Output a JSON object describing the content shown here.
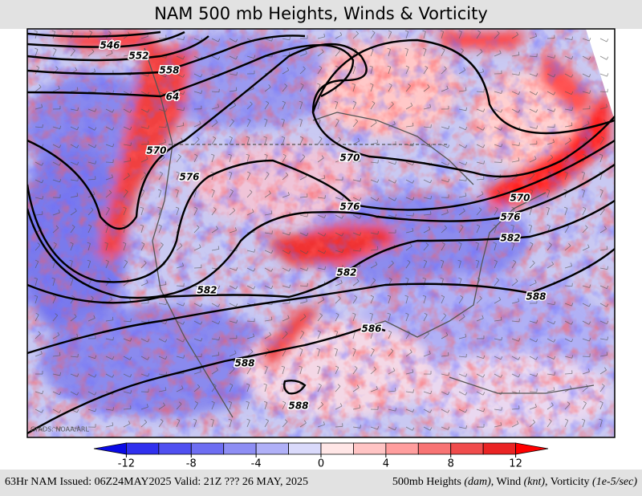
{
  "title": "NAM 500 mb Heights, Winds & Vorticity",
  "map": {
    "watermark": "GrADS: NOAA/ARL",
    "contour_labels": [
      "546",
      "552",
      "558",
      "64",
      "570",
      "576",
      "570",
      "576",
      "582",
      "582",
      "570",
      "576",
      "582",
      "588",
      "586",
      "588",
      "588"
    ],
    "colorbar": {
      "levels": [
        -14,
        -12,
        -10,
        -8,
        -6,
        -4,
        -2,
        0,
        2,
        4,
        6,
        8,
        10,
        12,
        14
      ],
      "colors": [
        "#0a0ae6",
        "#3030ee",
        "#5050f0",
        "#6e6ef2",
        "#8e8ef4",
        "#b0b0f7",
        "#dadafb",
        "#ffe6e6",
        "#ffc4c4",
        "#ff9e9e",
        "#f87474",
        "#f04c4c",
        "#ea2424",
        "#ff0000"
      ],
      "ticks": [
        -12,
        -8,
        -4,
        0,
        4,
        8,
        12
      ]
    }
  },
  "footer": {
    "left": "63Hr NAM Issued: 06Z24MAY2025 Valid: 21Z ??? 26 MAY, 2025",
    "right": [
      "500mb Heights ",
      "(dam)",
      ", Wind ",
      "(knt)",
      ", Vorticity ",
      "(1e-5/sec)"
    ]
  }
}
